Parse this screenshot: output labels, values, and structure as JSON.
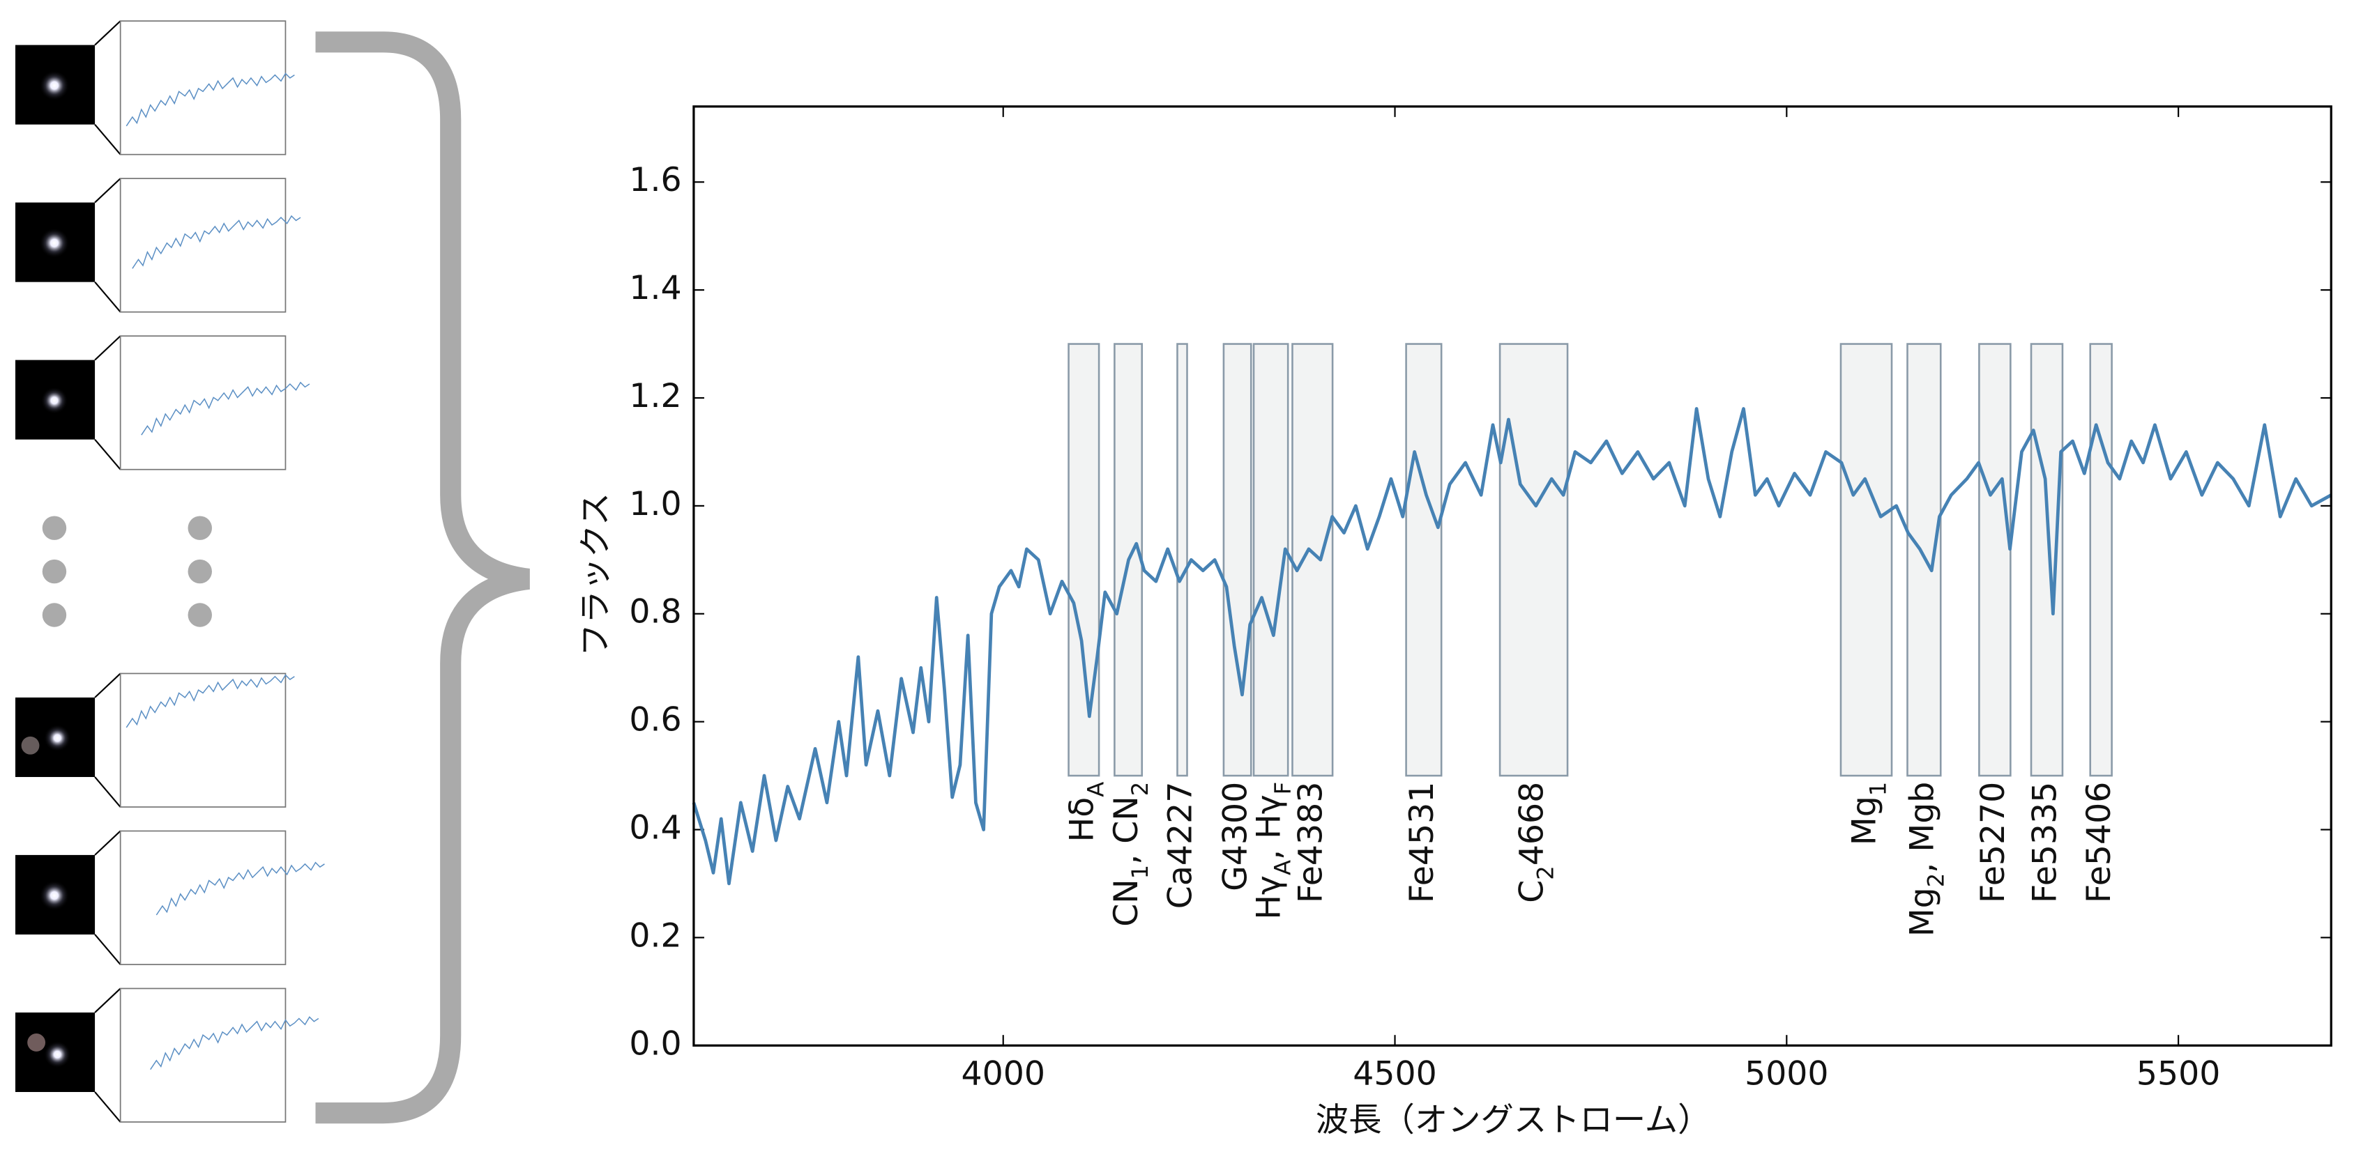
{
  "chart_data": {
    "type": "line",
    "xlabel": "波長（オングストローム）",
    "ylabel": "フラックス",
    "xlim": [
      3605,
      5695
    ],
    "ylim": [
      0,
      1.74
    ],
    "xticks": [
      4000,
      4500,
      5000,
      5500
    ],
    "yticks": [
      {
        "value": 0,
        "label": "0.0"
      },
      0.2,
      0.4,
      0.6,
      0.8,
      {
        "value": 1,
        "label": "1.0"
      },
      1.2,
      1.4,
      1.6
    ],
    "x": [
      3605,
      3620,
      3630,
      3640,
      3650,
      3665,
      3680,
      3695,
      3710,
      3725,
      3740,
      3760,
      3775,
      3790,
      3800,
      3815,
      3825,
      3840,
      3855,
      3870,
      3885,
      3895,
      3905,
      3915,
      3925,
      3935,
      3945,
      3955,
      3965,
      3975,
      3985,
      3995,
      4010,
      4020,
      4030,
      4045,
      4060,
      4075,
      4090,
      4100,
      4110,
      4120,
      4130,
      4145,
      4160,
      4170,
      4180,
      4195,
      4210,
      4225,
      4240,
      4255,
      4270,
      4285,
      4295,
      4305,
      4315,
      4330,
      4345,
      4360,
      4375,
      4390,
      4405,
      4420,
      4435,
      4450,
      4465,
      4480,
      4495,
      4510,
      4525,
      4540,
      4555,
      4570,
      4590,
      4610,
      4625,
      4635,
      4645,
      4660,
      4680,
      4700,
      4715,
      4730,
      4750,
      4770,
      4790,
      4810,
      4830,
      4850,
      4870,
      4885,
      4900,
      4915,
      4930,
      4945,
      4960,
      4975,
      4990,
      5010,
      5030,
      5050,
      5070,
      5085,
      5100,
      5120,
      5140,
      5155,
      5170,
      5185,
      5195,
      5210,
      5230,
      5245,
      5260,
      5275,
      5285,
      5300,
      5315,
      5330,
      5340,
      5350,
      5365,
      5380,
      5395,
      5410,
      5425,
      5440,
      5455,
      5470,
      5490,
      5510,
      5530,
      5550,
      5570,
      5590,
      5610,
      5630,
      5650,
      5670,
      5695
    ],
    "series": [
      {
        "color": "#4682b4",
        "values": [
          0.45,
          0.38,
          0.32,
          0.42,
          0.3,
          0.45,
          0.36,
          0.5,
          0.38,
          0.48,
          0.42,
          0.55,
          0.45,
          0.6,
          0.5,
          0.72,
          0.52,
          0.62,
          0.5,
          0.68,
          0.58,
          0.7,
          0.6,
          0.83,
          0.66,
          0.46,
          0.52,
          0.76,
          0.45,
          0.4,
          0.8,
          0.85,
          0.88,
          0.85,
          0.92,
          0.9,
          0.8,
          0.86,
          0.82,
          0.75,
          0.61,
          0.72,
          0.84,
          0.8,
          0.9,
          0.93,
          0.88,
          0.86,
          0.92,
          0.86,
          0.9,
          0.88,
          0.9,
          0.85,
          0.74,
          0.65,
          0.78,
          0.83,
          0.76,
          0.92,
          0.88,
          0.92,
          0.9,
          0.98,
          0.95,
          1.0,
          0.92,
          0.98,
          1.05,
          0.98,
          1.1,
          1.02,
          0.96,
          1.04,
          1.08,
          1.02,
          1.15,
          1.08,
          1.16,
          1.04,
          1.0,
          1.05,
          1.02,
          1.1,
          1.08,
          1.12,
          1.06,
          1.1,
          1.05,
          1.08,
          1.0,
          1.18,
          1.05,
          0.98,
          1.1,
          1.18,
          1.02,
          1.05,
          1.0,
          1.06,
          1.02,
          1.1,
          1.08,
          1.02,
          1.05,
          0.98,
          1.0,
          0.95,
          0.92,
          0.88,
          0.98,
          1.02,
          1.05,
          1.08,
          1.02,
          1.05,
          0.92,
          1.1,
          1.14,
          1.05,
          0.8,
          1.1,
          1.12,
          1.06,
          1.15,
          1.08,
          1.05,
          1.12,
          1.08,
          1.15,
          1.05,
          1.1,
          1.02,
          1.08,
          1.05,
          1.0,
          1.15,
          0.98,
          1.05,
          1.0,
          1.02
        ]
      }
    ],
    "regions": [
      {
        "label": [
          {
            "t": "Hδ"
          },
          {
            "sub": "A"
          }
        ],
        "start": 4083.5,
        "end": 4122.25,
        "bottom": 0.5,
        "top": 1.3
      },
      {
        "label": [
          {
            "t": "CN"
          },
          {
            "sub": "1"
          },
          {
            "t": ", CN"
          },
          {
            "sub": "2"
          }
        ],
        "start": 4142.1,
        "end": 4177.1,
        "bottom": 0.5,
        "top": 1.3
      },
      {
        "label": [
          {
            "t": "Ca4227"
          }
        ],
        "start": 4222.25,
        "end": 4234.75,
        "bottom": 0.5,
        "top": 1.3
      },
      {
        "label": [
          {
            "t": "G4300"
          }
        ],
        "start": 4281.4,
        "end": 4316.4,
        "bottom": 0.5,
        "top": 1.3
      },
      {
        "label": [
          {
            "t": "Hγ"
          },
          {
            "sub": "A"
          },
          {
            "t": ", Hγ"
          },
          {
            "sub": "F"
          }
        ],
        "start": 4319.75,
        "end": 4363.5,
        "bottom": 0.5,
        "top": 1.3
      },
      {
        "label": [
          {
            "t": "Fe4383"
          }
        ],
        "start": 4369.1,
        "end": 4420.4,
        "bottom": 0.5,
        "top": 1.3
      },
      {
        "label": [
          {
            "t": "Fe4531"
          }
        ],
        "start": 4514.3,
        "end": 4559.3,
        "bottom": 0.5,
        "top": 1.3
      },
      {
        "label": [
          {
            "t": "C"
          },
          {
            "sub": "2"
          },
          {
            "t": "4668"
          }
        ],
        "start": 4634.0,
        "end": 4720.3,
        "bottom": 0.5,
        "top": 1.3
      },
      {
        "label": [
          {
            "t": "Mg"
          },
          {
            "sub": "1"
          }
        ],
        "start": 5069.1,
        "end": 5134.1,
        "bottom": 0.5,
        "top": 1.3
      },
      {
        "label": [
          {
            "t": "Mg"
          },
          {
            "sub": "2"
          },
          {
            "t": ", Mgb"
          }
        ],
        "start": 5154.1,
        "end": 5196.6,
        "bottom": 0.5,
        "top": 1.3
      },
      {
        "label": [
          {
            "t": "Fe5270"
          }
        ],
        "start": 5245.7,
        "end": 5285.7,
        "bottom": 0.5,
        "top": 1.3
      },
      {
        "label": [
          {
            "t": "Fe5335"
          }
        ],
        "start": 5312.1,
        "end": 5352.1,
        "bottom": 0.5,
        "top": 1.3
      },
      {
        "label": [
          {
            "t": "Fe5406"
          }
        ],
        "start": 5387.5,
        "end": 5415.0,
        "bottom": 0.5,
        "top": 1.3
      }
    ]
  }
}
